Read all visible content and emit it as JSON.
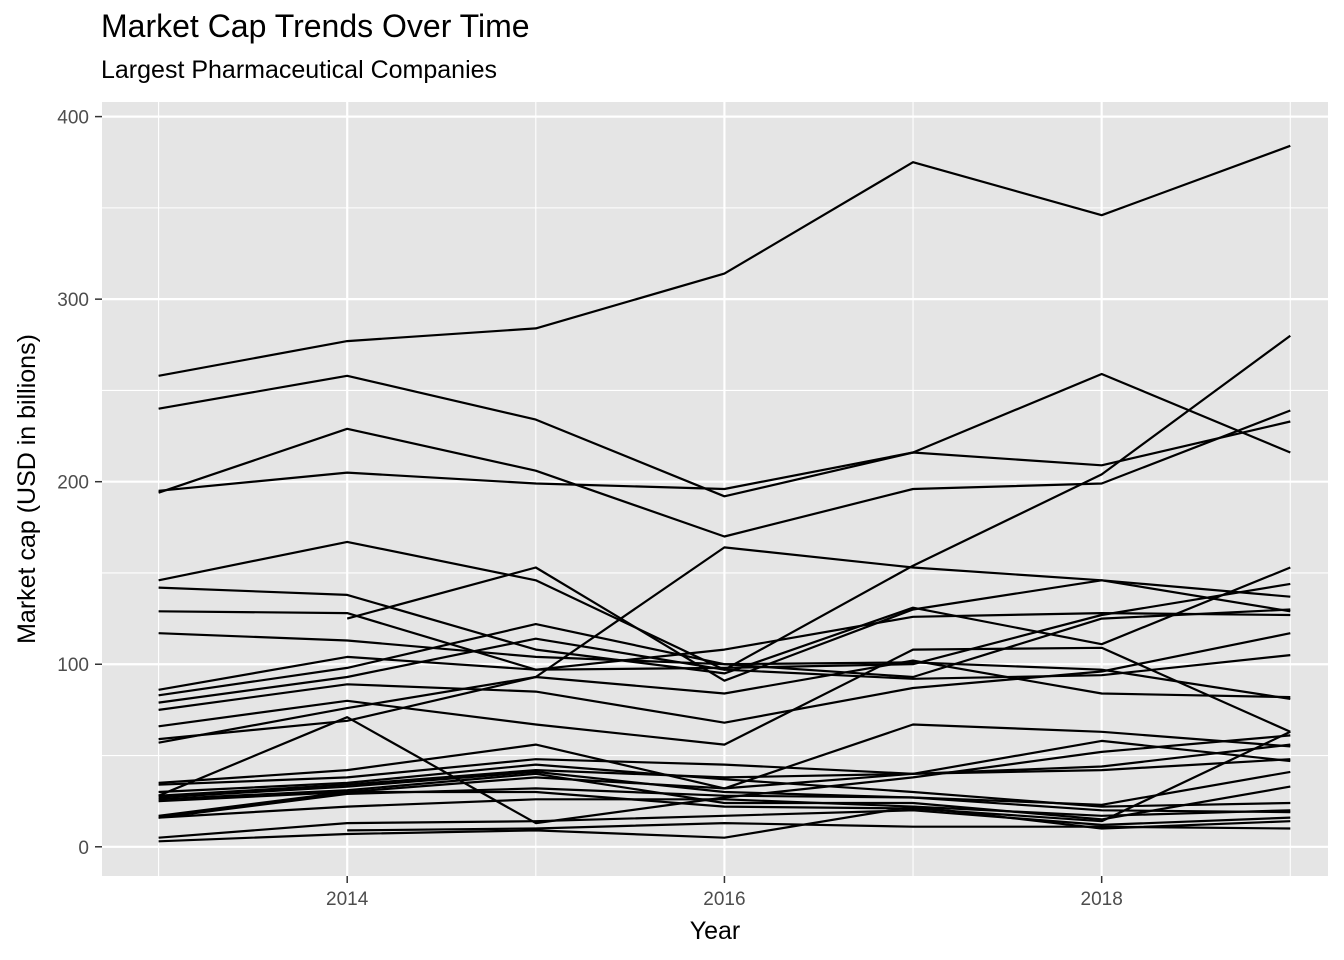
{
  "chart_data": {
    "type": "line",
    "title": "Market Cap Trends Over Time",
    "subtitle": "Largest Pharmaceutical Companies",
    "xlabel": "Year",
    "ylabel": "Market cap (USD in billions)",
    "xlim": [
      2012.7,
      2019.2
    ],
    "ylim": [
      -16,
      408
    ],
    "x_major_ticks": [
      2014,
      2016,
      2018
    ],
    "x_minor_ticks": [
      2013,
      2015,
      2017,
      2019
    ],
    "y_major_ticks": [
      0,
      100,
      200,
      300,
      400
    ],
    "y_minor_ticks": [
      50,
      150,
      250,
      350
    ],
    "grid": true,
    "legend": "none",
    "colors": {
      "panel_background": "#e5e5e5",
      "grid": "#ffffff",
      "line": "#000000",
      "tick_text": "#4d4d4d"
    },
    "x": [
      2013,
      2014,
      2015,
      2016,
      2017,
      2018,
      2019
    ],
    "series": [
      {
        "values": [
          258,
          277,
          284,
          314,
          375,
          346,
          384
        ]
      },
      {
        "values": [
          240,
          258,
          234,
          192,
          216,
          259,
          216
        ]
      },
      {
        "values": [
          194,
          229,
          206,
          170,
          196,
          199,
          239
        ]
      },
      {
        "values": [
          195,
          205,
          199,
          196,
          216,
          209,
          233
        ]
      },
      {
        "values": [
          146,
          167,
          146,
          97,
          154,
          204,
          280
        ]
      },
      {
        "values": [
          142,
          138,
          108,
          95,
          131,
          111,
          153
        ]
      },
      {
        "values": [
          129,
          128,
          97,
          98,
          100,
          127,
          144
        ]
      },
      {
        "values": [
          117,
          113,
          104,
          100,
          93,
          125,
          130
        ]
      },
      {
        "values": [
          null,
          125,
          153,
          91,
          130,
          146,
          137
        ]
      },
      {
        "values": [
          86,
          104,
          97,
          108,
          126,
          128,
          127
        ]
      },
      {
        "values": [
          83,
          98,
          122,
          100,
          101,
          97,
          81
        ]
      },
      {
        "values": [
          79,
          93,
          114,
          97,
          92,
          94,
          105
        ]
      },
      {
        "values": [
          75,
          89,
          85,
          68,
          87,
          96,
          117
        ]
      },
      {
        "values": [
          66,
          80,
          67,
          56,
          108,
          109,
          63
        ]
      },
      {
        "values": [
          59,
          69,
          93,
          84,
          102,
          84,
          82
        ]
      },
      {
        "values": [
          57,
          76,
          93,
          164,
          153,
          146,
          129
        ]
      },
      {
        "values": [
          28,
          71,
          13,
          27,
          38,
          52,
          61
        ]
      },
      {
        "values": [
          35,
          42,
          56,
          32,
          67,
          63,
          55
        ]
      },
      {
        "values": [
          34,
          38,
          48,
          45,
          40,
          42,
          48
        ]
      },
      {
        "values": [
          30,
          35,
          45,
          37,
          30,
          22,
          24
        ]
      },
      {
        "values": [
          28,
          34,
          42,
          38,
          40,
          44,
          56
        ]
      },
      {
        "values": [
          27,
          33,
          41,
          30,
          27,
          23,
          41
        ]
      },
      {
        "values": [
          26,
          31,
          40,
          24,
          24,
          15,
          33
        ]
      },
      {
        "values": [
          25,
          30,
          30,
          22,
          21,
          14,
          63
        ]
      },
      {
        "values": [
          17,
          30,
          38,
          32,
          40,
          58,
          47
        ]
      },
      {
        "values": [
          16,
          22,
          26,
          26,
          22,
          17,
          20
        ]
      },
      {
        "values": [
          16,
          29,
          32,
          28,
          27,
          20,
          19
        ]
      },
      {
        "values": [
          5,
          13,
          14,
          17,
          20,
          12,
          16
        ]
      },
      {
        "values": [
          3,
          7,
          9,
          5,
          22,
          10,
          14
        ]
      },
      {
        "values": [
          null,
          9,
          10,
          13,
          11,
          11,
          10
        ]
      }
    ]
  }
}
